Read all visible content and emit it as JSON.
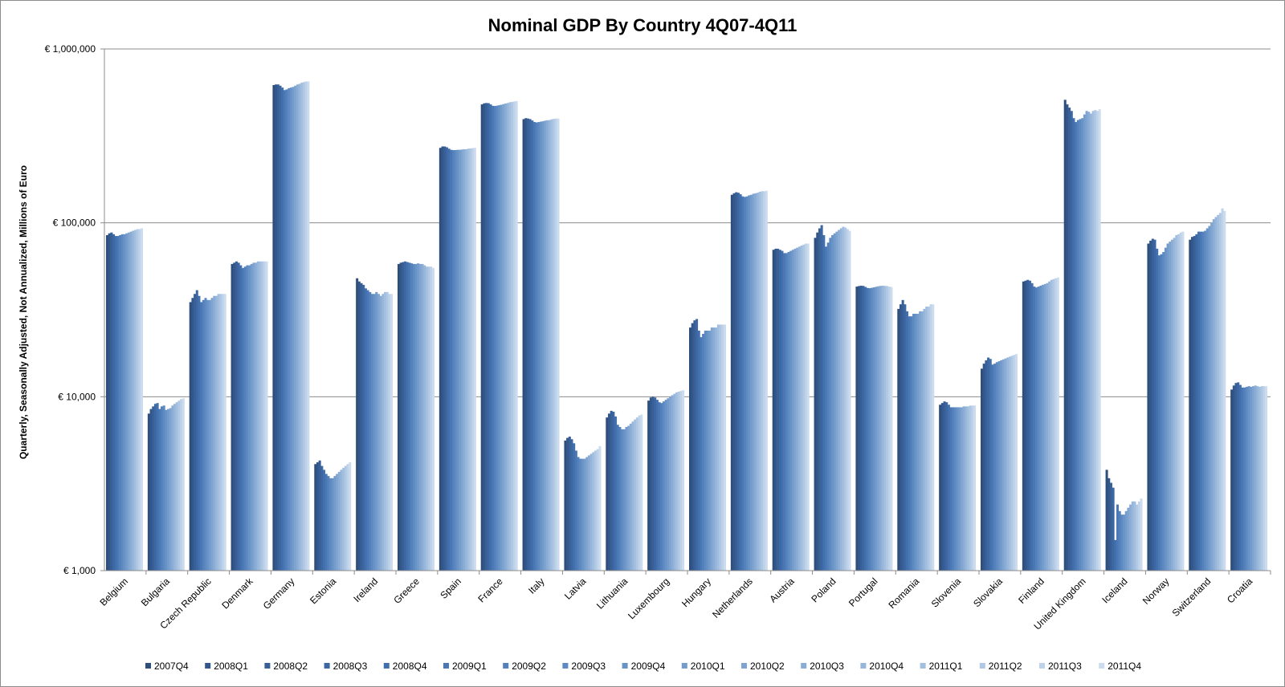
{
  "chart_data": {
    "type": "bar",
    "title": "Nominal GDP By Country 4Q07-4Q11",
    "xlabel": "",
    "ylabel": "Quarterly, Seasonally Adjusted, Not Annualized, Millions of Euro",
    "yscale": "log",
    "ylim": [
      1000,
      1000000
    ],
    "yticks": [
      1000,
      10000,
      100000,
      1000000
    ],
    "ytick_labels": [
      "€ 1,000",
      "€ 10,000",
      "€ 100,000",
      "€ 1,000,000"
    ],
    "grid": true,
    "legend_position": "bottom",
    "categories": [
      "Belgium",
      "Bulgaria",
      "Czech Republic",
      "Denmark",
      "Germany",
      "Estonia",
      "Ireland",
      "Greece",
      "Spain",
      "France",
      "Italy",
      "Latvia",
      "Lithuania",
      "Luxembourg",
      "Hungary",
      "Netherlands",
      "Austria",
      "Poland",
      "Portugal",
      "Romania",
      "Slovenia",
      "Slovakia",
      "Finland",
      "United Kingdom",
      "Iceland",
      "Norway",
      "Switzerland",
      "Croatia"
    ],
    "series_names": [
      "2007Q4",
      "2008Q1",
      "2008Q2",
      "2008Q3",
      "2008Q4",
      "2009Q1",
      "2009Q2",
      "2009Q3",
      "2009Q4",
      "2010Q1",
      "2010Q2",
      "2010Q3",
      "2010Q4",
      "2011Q1",
      "2011Q2",
      "2011Q3",
      "2011Q4"
    ],
    "series_colors": [
      "#2e4f7c",
      "#33578a",
      "#385f96",
      "#3d67a2",
      "#4270ad",
      "#4a78b5",
      "#5481bb",
      "#5e8ac1",
      "#6893c6",
      "#739bcb",
      "#7fa4d0",
      "#8badd5",
      "#97b6da",
      "#a3bfdf",
      "#b0c8e4",
      "#bed2e9",
      "#ccdcee"
    ],
    "values": [
      [
        85000,
        87000,
        88000,
        86000,
        84000,
        84000,
        85000,
        86000,
        86000,
        87000,
        88000,
        89000,
        90000,
        91000,
        92000,
        92000,
        93000
      ],
      [
        8000,
        8500,
        8800,
        9100,
        9200,
        8500,
        8800,
        8900,
        8400,
        8500,
        8600,
        8900,
        9100,
        9300,
        9500,
        9700,
        9800
      ],
      [
        35000,
        37000,
        39000,
        41000,
        38000,
        35000,
        36000,
        37000,
        36000,
        36000,
        37000,
        38000,
        38000,
        39000,
        39000,
        39000,
        39000
      ],
      [
        58000,
        59000,
        60000,
        59000,
        57000,
        55000,
        56000,
        57000,
        57000,
        58000,
        59000,
        59000,
        60000,
        60000,
        60000,
        60000,
        60000
      ],
      [
        620000,
        625000,
        625000,
        615000,
        600000,
        580000,
        585000,
        595000,
        600000,
        605000,
        615000,
        625000,
        630000,
        640000,
        645000,
        650000,
        650000
      ],
      [
        4100,
        4200,
        4300,
        4000,
        3800,
        3600,
        3500,
        3400,
        3400,
        3500,
        3600,
        3700,
        3800,
        3900,
        4000,
        4100,
        4200
      ],
      [
        48000,
        46000,
        45000,
        44000,
        42000,
        41000,
        40000,
        39000,
        39000,
        40000,
        39000,
        38000,
        39000,
        40000,
        40000,
        39000,
        39000
      ],
      [
        58000,
        59000,
        59500,
        60000,
        59500,
        59000,
        58500,
        58000,
        58000,
        58500,
        58000,
        58000,
        57000,
        56000,
        56000,
        56000,
        55000
      ],
      [
        270000,
        275000,
        275000,
        272000,
        267000,
        263000,
        262000,
        262000,
        263000,
        263000,
        264000,
        265000,
        265000,
        267000,
        268000,
        269000,
        270000
      ],
      [
        480000,
        487000,
        489000,
        488000,
        480000,
        471000,
        470000,
        472000,
        475000,
        478000,
        482000,
        486000,
        489000,
        494000,
        496000,
        499000,
        502000
      ],
      [
        395000,
        400000,
        398000,
        395000,
        388000,
        380000,
        378000,
        380000,
        382000,
        384000,
        387000,
        389000,
        390000,
        394000,
        396000,
        398000,
        398000
      ],
      [
        5600,
        5800,
        5900,
        5700,
        5400,
        4900,
        4500,
        4400,
        4400,
        4400,
        4500,
        4600,
        4700,
        4800,
        4900,
        5000,
        5200
      ],
      [
        7600,
        8000,
        8300,
        8200,
        7700,
        6900,
        6700,
        6500,
        6500,
        6700,
        6800,
        7000,
        7200,
        7400,
        7600,
        7800,
        7900
      ],
      [
        9500,
        9900,
        10000,
        9900,
        9600,
        9300,
        9200,
        9400,
        9600,
        9800,
        10000,
        10200,
        10400,
        10600,
        10700,
        10800,
        10900
      ],
      [
        25000,
        26500,
        27500,
        28000,
        24000,
        22000,
        23000,
        24000,
        24000,
        24000,
        25000,
        25000,
        25000,
        26000,
        26000,
        26000,
        26000
      ],
      [
        145000,
        148000,
        150000,
        149000,
        146000,
        142000,
        141000,
        142000,
        144000,
        145000,
        147000,
        148000,
        149000,
        151000,
        152000,
        152000,
        153000
      ],
      [
        70000,
        71000,
        71000,
        70000,
        69000,
        67000,
        67000,
        68000,
        69000,
        70000,
        71000,
        72000,
        73000,
        74000,
        75000,
        76000,
        76000
      ],
      [
        82000,
        88000,
        93000,
        97000,
        85000,
        73000,
        77000,
        82000,
        85000,
        87000,
        89000,
        91000,
        93000,
        95000,
        94000,
        92000,
        90000
      ],
      [
        43000,
        43300,
        43500,
        43400,
        42800,
        42200,
        42100,
        42300,
        42600,
        42900,
        43200,
        43400,
        43500,
        43400,
        43300,
        43000,
        42800
      ],
      [
        32000,
        34000,
        36000,
        34000,
        31000,
        29000,
        29000,
        30000,
        30000,
        30000,
        31000,
        31000,
        32000,
        33000,
        33000,
        34000,
        34000
      ],
      [
        9000,
        9200,
        9400,
        9300,
        9000,
        8700,
        8700,
        8700,
        8700,
        8700,
        8700,
        8800,
        8800,
        8800,
        8900,
        8900,
        8900
      ],
      [
        14500,
        15500,
        16200,
        16800,
        16500,
        15300,
        15500,
        15800,
        16000,
        16200,
        16400,
        16600,
        16800,
        17000,
        17200,
        17400,
        17600
      ],
      [
        46000,
        46500,
        47000,
        46500,
        45000,
        43000,
        42500,
        43000,
        43500,
        44000,
        44500,
        45000,
        46000,
        47000,
        47500,
        48000,
        48500
      ],
      [
        510000,
        480000,
        460000,
        440000,
        400000,
        380000,
        390000,
        395000,
        400000,
        420000,
        440000,
        435000,
        425000,
        440000,
        445000,
        440000,
        450000
      ],
      [
        3800,
        3400,
        3200,
        3000,
        1500,
        2400,
        2200,
        2100,
        2100,
        2200,
        2300,
        2400,
        2500,
        2500,
        2400,
        2500,
        2600
      ],
      [
        76000,
        79000,
        81000,
        80000,
        71000,
        65000,
        66000,
        68000,
        72000,
        76000,
        78000,
        80000,
        82000,
        85000,
        86000,
        88000,
        89000
      ],
      [
        80000,
        83000,
        84000,
        86000,
        89000,
        89000,
        89000,
        90000,
        93000,
        96000,
        100000,
        105000,
        108000,
        111000,
        114000,
        121000,
        117000
      ],
      [
        11000,
        11600,
        12000,
        12100,
        11700,
        11300,
        11300,
        11400,
        11500,
        11400,
        11500,
        11600,
        11500,
        11400,
        11500,
        11500,
        11500
      ]
    ]
  }
}
